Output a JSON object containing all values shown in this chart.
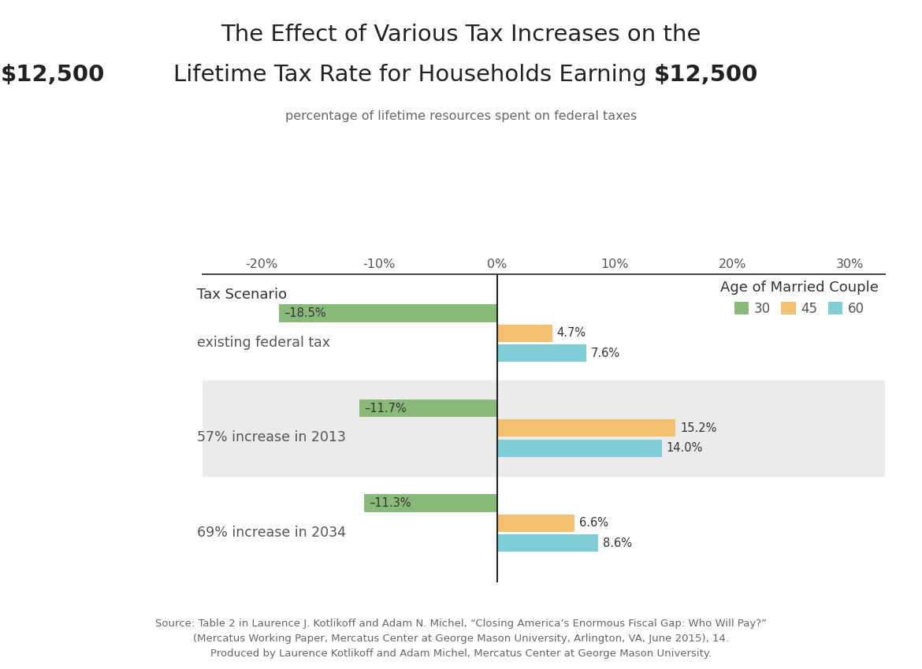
{
  "title_line1": "The Effect of Various Tax Increases on the",
  "title_line2": "Lifetime Tax Rate for Households Earning ",
  "title_highlight": "$12,500",
  "subtitle": "percentage of lifetime resources spent on federal taxes",
  "scenarios": [
    "existing federal tax",
    "57% increase in 2013",
    "69% increase in 2034"
  ],
  "ages": [
    "30",
    "45",
    "60"
  ],
  "age_colors": [
    "#8aba7a",
    "#f2c06e",
    "#80cdd8"
  ],
  "values": {
    "existing federal tax": [
      -18.5,
      4.7,
      7.6
    ],
    "57% increase in 2013": [
      -11.7,
      15.2,
      14.0
    ],
    "69% increase in 2034": [
      -11.3,
      6.6,
      8.6
    ]
  },
  "bar_height": 0.21,
  "bar_gap": 0.005,
  "xlim": [
    -25,
    33
  ],
  "xticks": [
    -20,
    -10,
    0,
    10,
    20,
    30
  ],
  "xticklabels": [
    "-20%",
    "-10%",
    "0%",
    "10%",
    "20%",
    "30%"
  ],
  "shaded_scenarios": [
    "57% increase in 2013"
  ],
  "shade_color": "#ebebeb",
  "zero_line_color": "#222222",
  "legend_title": "Age of Married Couple",
  "source_text": "Source: Table 2 in Laurence J. Kotlikoff and Adam N. Michel, “Closing America’s Enormous Fiscal Gap: Who Will Pay?”\n(Mercatus Working Paper, Mercatus Center at George Mason University, Arlington, VA, June 2015), 14.\nProduced by Laurence Kotlikoff and Adam Michel, Mercatus Center at George Mason University.",
  "background_color": "#ffffff",
  "neg_label_values": [
    "–18.5%",
    "–11.7%",
    "–11.3%"
  ],
  "pos_label_values_existing": [
    "4.7%",
    "7.6%"
  ],
  "pos_label_values_57": [
    "15.2%",
    "14.0%"
  ],
  "pos_label_values_69": [
    "6.6%",
    "8.6%"
  ]
}
